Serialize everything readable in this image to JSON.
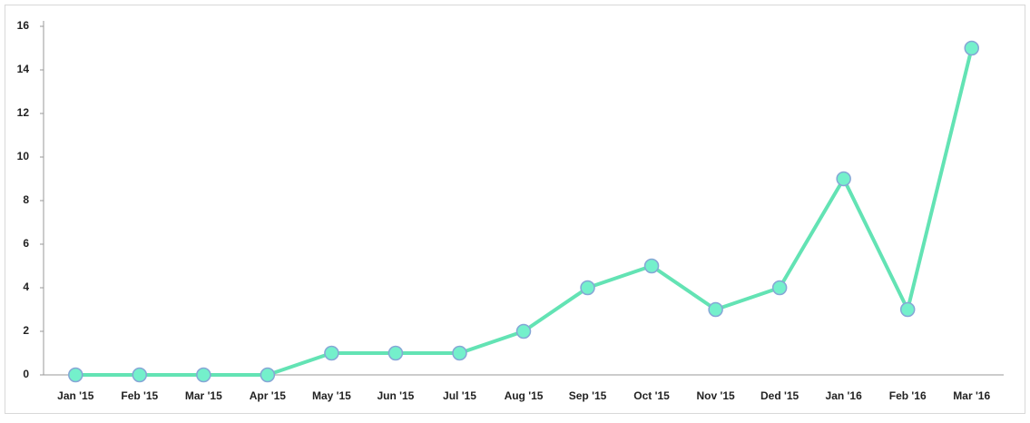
{
  "chart_data": {
    "type": "line",
    "categories": [
      "Jan '15",
      "Feb '15",
      "Mar '15",
      "Apr '15",
      "May '15",
      "Jun '15",
      "Jul '15",
      "Aug '15",
      "Sep '15",
      "Oct '15",
      "Nov '15",
      "Ded '15",
      "Jan '16",
      "Feb '16",
      "Mar '16"
    ],
    "series": [
      {
        "color": "#63e3b4",
        "values": [
          0,
          0,
          0,
          0,
          1,
          1,
          1,
          2,
          4,
          5,
          3,
          4,
          9,
          3,
          15
        ]
      }
    ],
    "ylim": [
      0,
      16
    ],
    "yticks": [
      0,
      2,
      4,
      6,
      8,
      10,
      12,
      14,
      16
    ],
    "grid": false
  }
}
